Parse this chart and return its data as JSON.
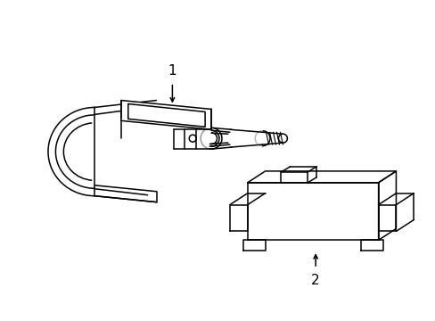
{
  "background_color": "#ffffff",
  "line_color": "#000000",
  "line_width": 1.1,
  "label1": "1",
  "label2": "2",
  "fig_width": 4.89,
  "fig_height": 3.6,
  "dpi": 100
}
